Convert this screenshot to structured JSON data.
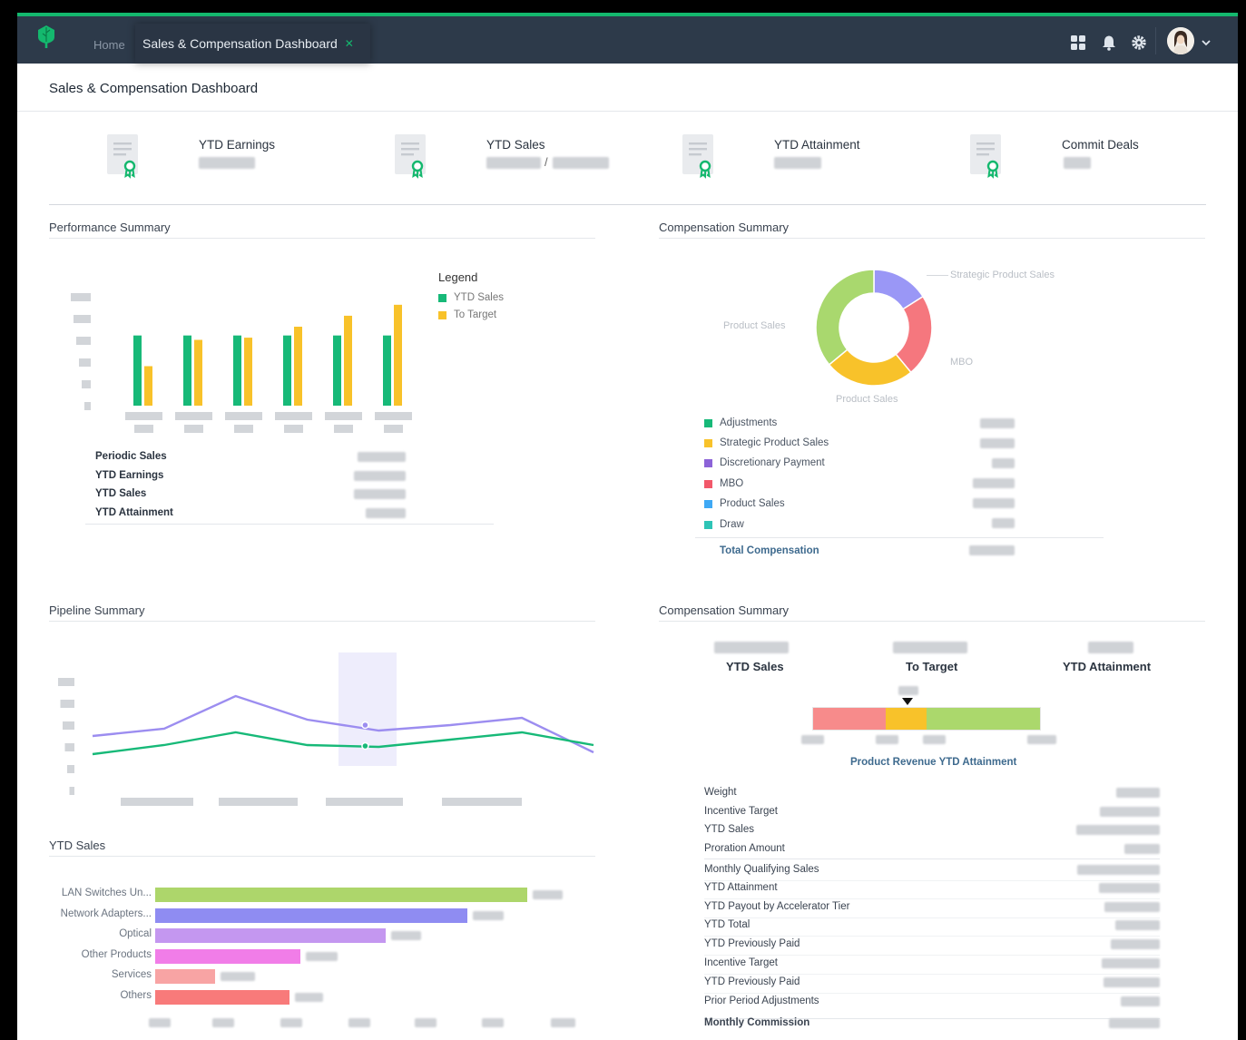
{
  "colors": {
    "accent": "#14b86e",
    "topbar": "#2d3a4a",
    "ytd_sales": "#17b978",
    "to_target": "#f8c22a",
    "line_purple": "#9c8df0",
    "line_green": "#17b978"
  },
  "topbar": {
    "logo_icon": "tree-logo-icon",
    "home_label": "Home",
    "active_tab": "Sales & Compensation Dashboard",
    "close_icon": "close-icon",
    "icons": [
      "apps-grid-icon",
      "bell-icon",
      "gear-icon",
      "chevron-down-icon"
    ]
  },
  "page": {
    "title": "Sales & Compensation Dashboard"
  },
  "kpis": [
    {
      "label": "YTD Earnings",
      "icon": "certificate-icon"
    },
    {
      "label": "YTD Sales",
      "separator": "/",
      "icon": "certificate-icon"
    },
    {
      "label": "YTD Attainment",
      "icon": "certificate-icon"
    },
    {
      "label": "Commit Deals",
      "icon": "certificate-icon"
    }
  ],
  "performance": {
    "title": "Performance Summary",
    "legend_title": "Legend",
    "legend": [
      "YTD Sales",
      "To Target"
    ],
    "stats": [
      "Periodic Sales",
      "YTD Earnings",
      "YTD Sales",
      "YTD Attainment"
    ]
  },
  "chart_data": [
    {
      "type": "bar",
      "ylim": [
        0,
        6
      ],
      "categories": [
        "",
        "",
        "",
        "",
        "",
        ""
      ],
      "series": [
        {
          "name": "YTD Sales",
          "values": [
            3.2,
            3.2,
            3.2,
            3.2,
            3.2,
            3.2
          ]
        },
        {
          "name": "To Target",
          "values": [
            1.8,
            3.0,
            3.1,
            3.6,
            4.1,
            4.6
          ]
        }
      ]
    },
    {
      "type": "pie",
      "labels": [
        "Strategic Product Sales",
        "MBO",
        "Product Sales",
        "Product Sales"
      ],
      "values": [
        16,
        23,
        25,
        36
      ],
      "colors": [
        "#9a97f6",
        "#f5777e",
        "#f8c22a",
        "#a9d86e"
      ]
    },
    {
      "type": "line",
      "ylim": [
        0,
        6
      ],
      "x": [
        0,
        1,
        2,
        3,
        4,
        5,
        6,
        7
      ],
      "series": [
        {
          "values": [
            2.4,
            2.8,
            4.6,
            3.3,
            2.7,
            3.0,
            3.4,
            1.5
          ]
        },
        {
          "values": [
            1.4,
            1.9,
            2.6,
            1.9,
            1.8,
            2.2,
            2.6,
            1.9
          ]
        }
      ]
    },
    {
      "type": "bar",
      "orientation": "horizontal",
      "categories": [
        "LAN Switches Un...",
        "Network Adapters...",
        "Optical",
        "Other Products",
        "Services",
        "Others"
      ],
      "values": [
        100,
        84,
        62,
        39,
        16,
        36
      ],
      "colors": [
        "#add66b",
        "#8f8cf2",
        "#c497f0",
        "#f17de8",
        "#f8a4a4",
        "#f87a7a"
      ]
    }
  ],
  "compensation": {
    "title": "Compensation Summary",
    "items": [
      {
        "label": "Adjustments",
        "color": "#17b978"
      },
      {
        "label": "Strategic Product Sales",
        "color": "#f8c22a"
      },
      {
        "label": "Discretionary Payment",
        "color": "#8c63d8"
      },
      {
        "label": "MBO",
        "color": "#f2586a"
      },
      {
        "label": "Product Sales",
        "color": "#3fa9f5"
      },
      {
        "label": "Draw",
        "color": "#2ec4b6"
      }
    ],
    "total_label": "Total Compensation"
  },
  "pipeline": {
    "title": "Pipeline Summary"
  },
  "ytd_sales": {
    "title": "YTD Sales"
  },
  "comp2": {
    "title": "Compensation Summary",
    "col_labels": [
      "YTD Sales",
      "To Target",
      "YTD Attainment"
    ],
    "attainment_title": "Product Revenue YTD Attainment",
    "attainment_segments": [
      32,
      18,
      50
    ],
    "attainment_colors": [
      "#f78b8b",
      "#f8c22a",
      "#abd86c"
    ],
    "rows": [
      "Weight",
      "Incentive Target",
      "YTD Sales",
      "Proration Amount",
      "Monthly Qualifying Sales",
      "YTD Attainment",
      "YTD Payout by Accelerator Tier",
      "YTD Total",
      "YTD Previously Paid",
      "Incentive Target",
      "YTD Previously Paid",
      "Prior Period Adjustments"
    ],
    "footer_label": "Monthly Commission"
  }
}
